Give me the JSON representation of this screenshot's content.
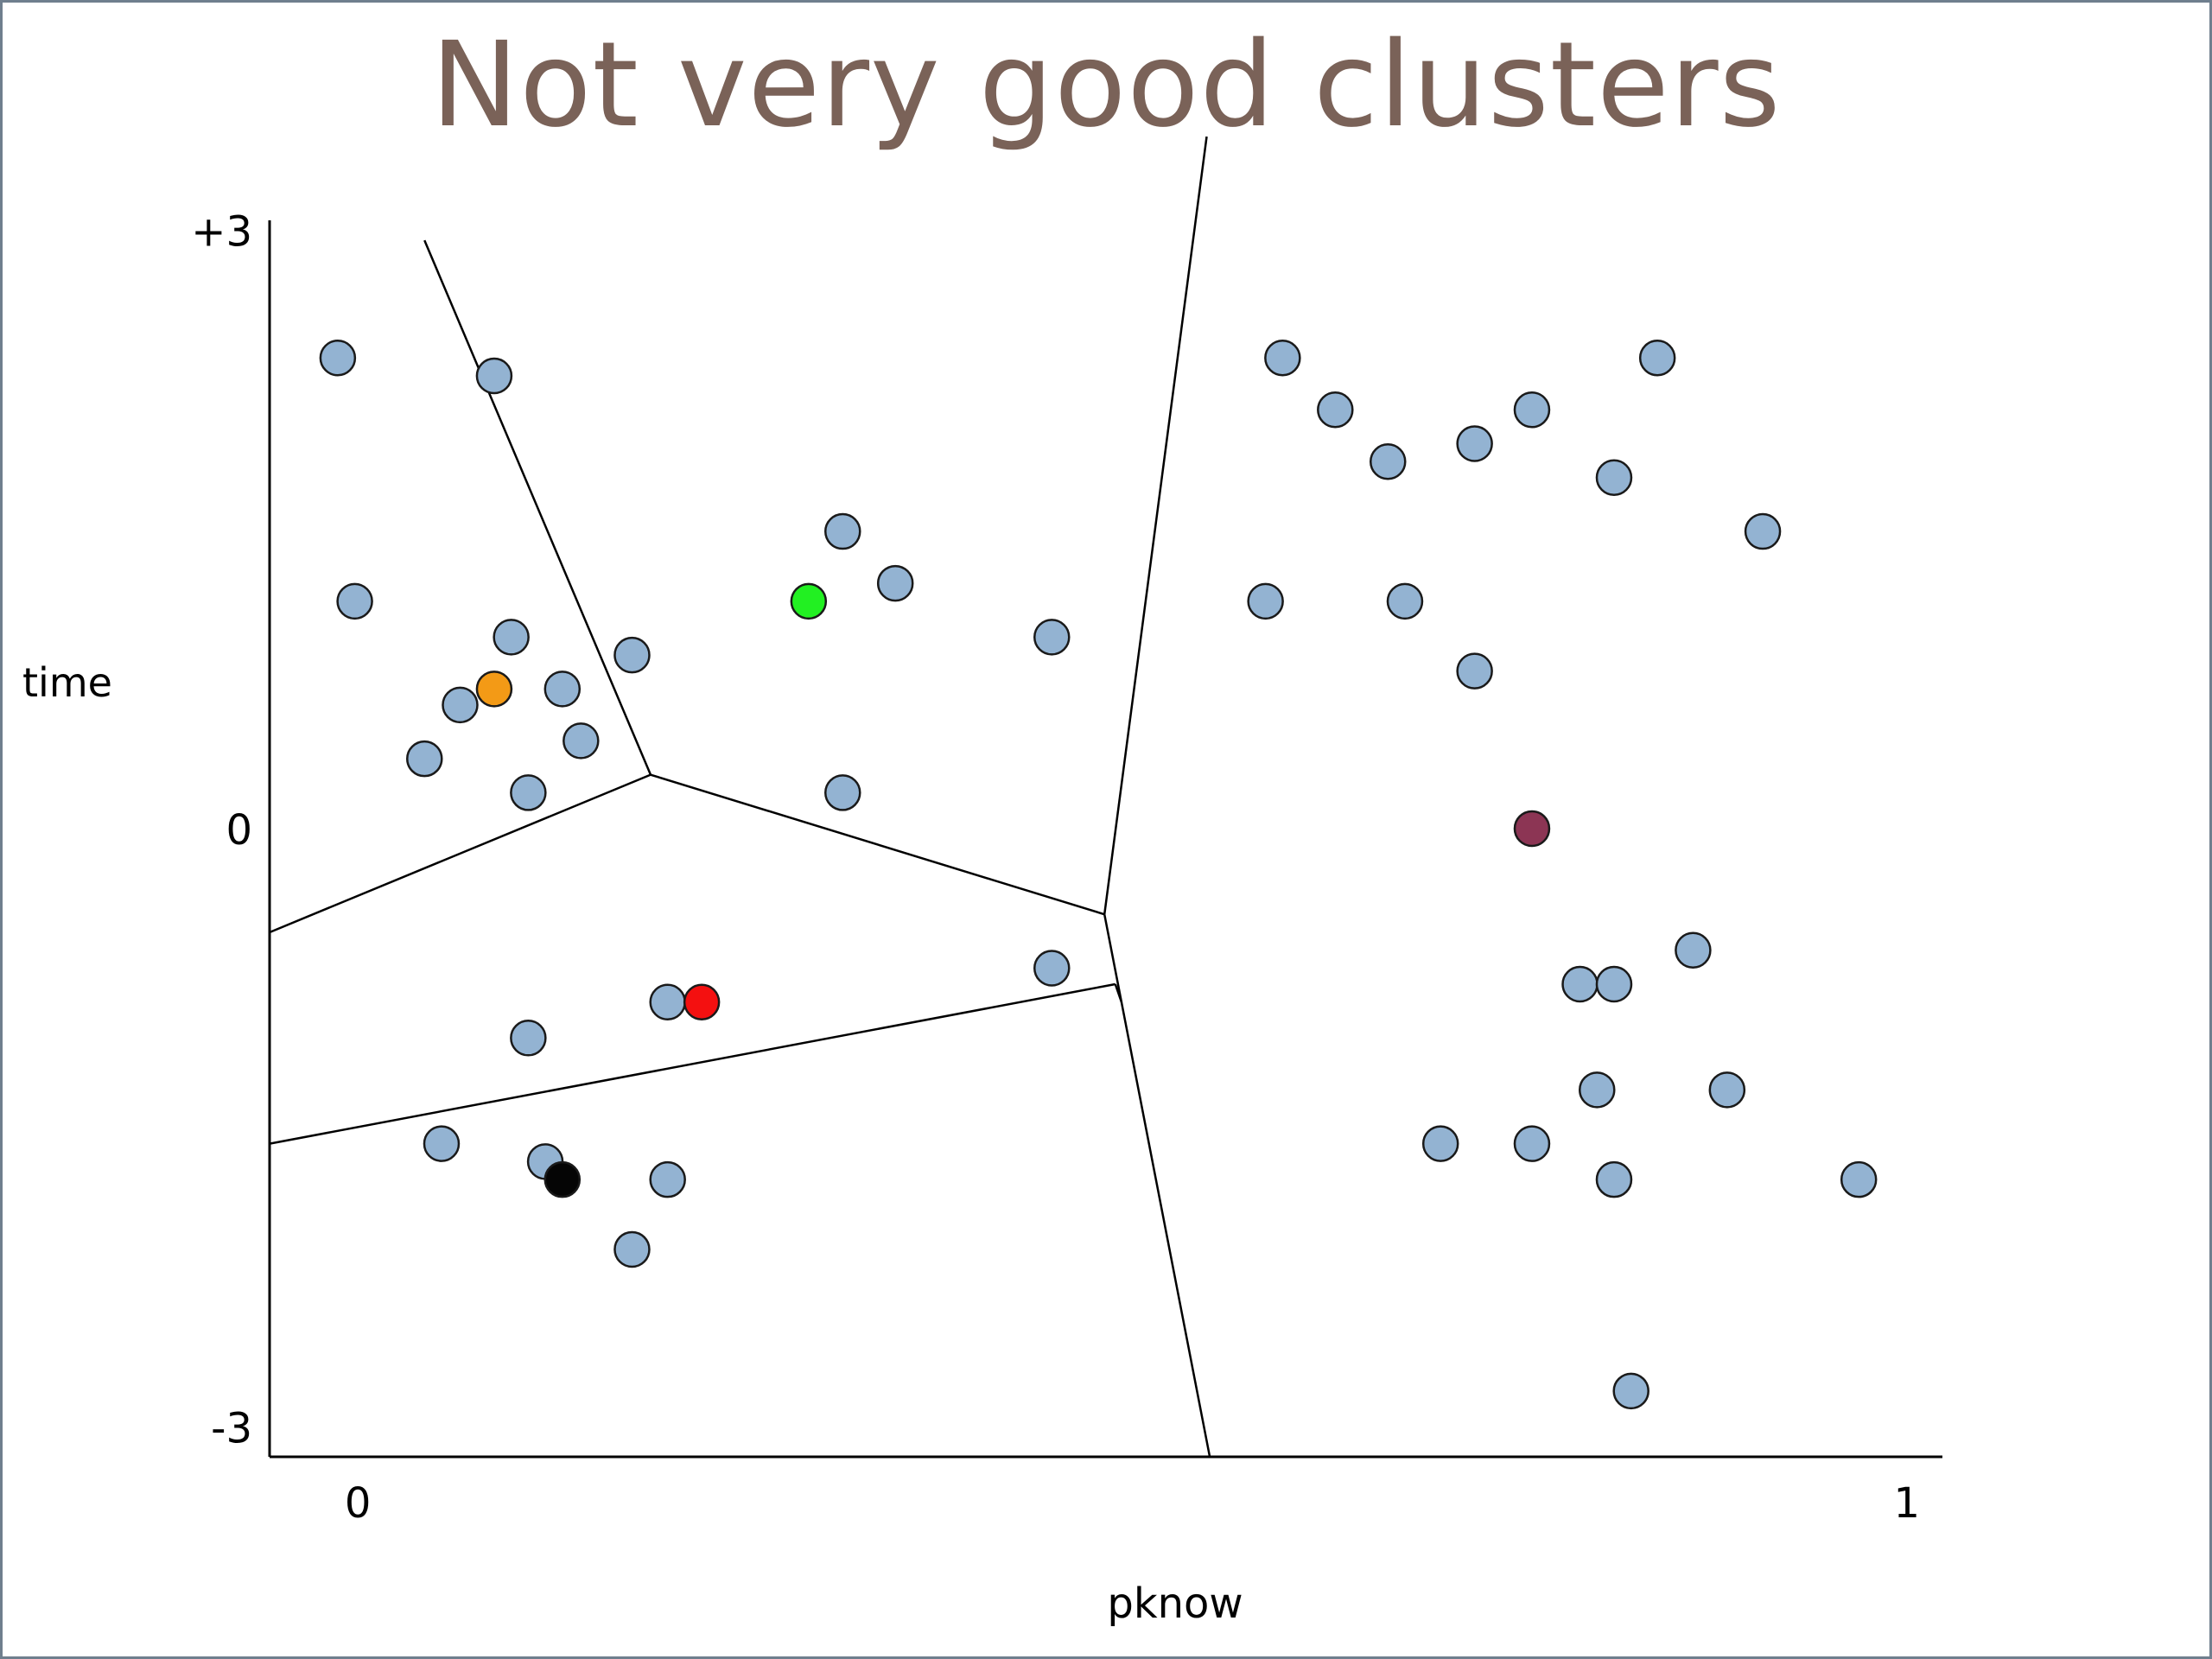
{
  "title": "Not very good clusters",
  "chart_data": {
    "type": "scatter",
    "title": "Not very good clusters",
    "xlabel": "pknow",
    "ylabel": "time",
    "x_ticks": [
      {
        "value": 0,
        "label": "0"
      },
      {
        "value": 1,
        "label": "1"
      }
    ],
    "y_ticks": [
      {
        "value": 3,
        "label": "+3"
      },
      {
        "value": 0,
        "label": "0"
      },
      {
        "value": -3,
        "label": "-3"
      }
    ],
    "xlim": [
      -0.057,
      1.023
    ],
    "ylim": [
      -3.15,
      3.05
    ],
    "colors": {
      "point": "#93b3d2",
      "point_edge": "#1a1a1a",
      "title": "#7a6258",
      "axis": "#000000"
    },
    "points": [
      [
        -0.013,
        2.36
      ],
      [
        0.088,
        2.27
      ],
      [
        -0.002,
        1.14
      ],
      [
        0.099,
        0.96
      ],
      [
        0.177,
        0.87
      ],
      [
        0.132,
        0.7
      ],
      [
        0.066,
        0.62
      ],
      [
        0.144,
        0.44
      ],
      [
        0.043,
        0.35
      ],
      [
        0.11,
        0.18
      ],
      [
        0.313,
        1.49
      ],
      [
        0.347,
        1.23
      ],
      [
        0.448,
        0.96
      ],
      [
        0.313,
        0.18
      ],
      [
        0.2,
        -0.87
      ],
      [
        0.11,
        -1.05
      ],
      [
        0.448,
        -0.7
      ],
      [
        0.054,
        -1.58
      ],
      [
        0.121,
        -1.67
      ],
      [
        0.2,
        -1.76
      ],
      [
        0.177,
        -2.11
      ],
      [
        0.597,
        2.36
      ],
      [
        0.631,
        2.1
      ],
      [
        0.665,
        1.84
      ],
      [
        0.721,
        1.93
      ],
      [
        0.758,
        2.1
      ],
      [
        0.839,
        2.36
      ],
      [
        0.811,
        1.76
      ],
      [
        0.907,
        1.49
      ],
      [
        0.586,
        1.14
      ],
      [
        0.676,
        1.14
      ],
      [
        0.721,
        0.79
      ],
      [
        0.862,
        -0.61
      ],
      [
        0.789,
        -0.78
      ],
      [
        0.811,
        -0.78
      ],
      [
        0.8,
        -1.31
      ],
      [
        0.884,
        -1.31
      ],
      [
        0.699,
        -1.58
      ],
      [
        0.758,
        -1.58
      ],
      [
        0.811,
        -1.76
      ],
      [
        0.969,
        -1.76
      ],
      [
        0.822,
        -2.82
      ]
    ],
    "centroids": [
      {
        "x": 0.088,
        "y": 0.7,
        "color": "#f39a16"
      },
      {
        "x": 0.291,
        "y": 1.14,
        "color": "#22f022"
      },
      {
        "x": 0.222,
        "y": -0.87,
        "color": "#f41010"
      },
      {
        "x": 0.132,
        "y": -1.76,
        "color": "#050505"
      },
      {
        "x": 0.758,
        "y": 0.0,
        "color": "#8c3554"
      }
    ],
    "boundaries": [
      [
        [
          0.043,
          2.95
        ],
        [
          0.189,
          0.27
        ]
      ],
      [
        [
          -0.057,
          -0.52
        ],
        [
          0.189,
          0.27
        ]
      ],
      [
        [
          0.189,
          0.27
        ],
        [
          0.482,
          -0.43
        ]
      ],
      [
        [
          0.482,
          -0.43
        ],
        [
          0.548,
          3.47
        ]
      ],
      [
        [
          -0.057,
          -1.58
        ],
        [
          0.489,
          -0.78
        ]
      ],
      [
        [
          0.489,
          -0.78
        ],
        [
          0.493,
          -0.87
        ]
      ],
      [
        [
          0.482,
          -0.43
        ],
        [
          0.55,
          -3.15
        ]
      ]
    ]
  }
}
